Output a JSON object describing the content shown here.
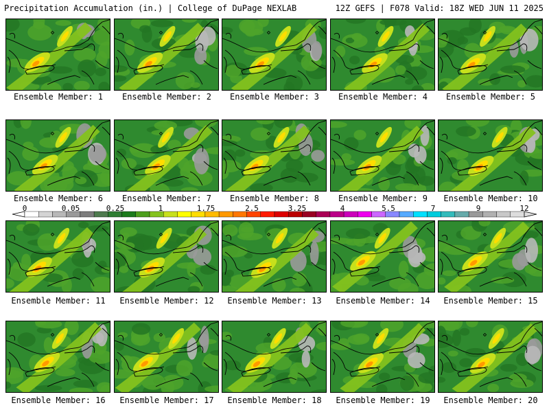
{
  "header": {
    "left": "Precipitation Accumulation (in.) | College of DuPage NEXLAB",
    "right": "12Z GEFS | F078 Valid: 18Z WED JUN 11 2025"
  },
  "panels": [
    {
      "caption": "Ensemble Member: 1"
    },
    {
      "caption": "Ensemble Member: 2"
    },
    {
      "caption": "Ensemble Member: 3"
    },
    {
      "caption": "Ensemble Member: 4"
    },
    {
      "caption": "Ensemble Member: 5"
    },
    {
      "caption": "Ensemble Member: 6"
    },
    {
      "caption": "Ensemble Member: 7"
    },
    {
      "caption": "Ensemble Member: 8"
    },
    {
      "caption": "Ensemble Member: 9"
    },
    {
      "caption": "Ensemble Member: 10"
    },
    {
      "caption": "Ensemble Member: 11"
    },
    {
      "caption": "Ensemble Member: 12"
    },
    {
      "caption": "Ensemble Member: 13"
    },
    {
      "caption": "Ensemble Member: 14"
    },
    {
      "caption": "Ensemble Member: 15"
    },
    {
      "caption": "Ensemble Member: 16"
    },
    {
      "caption": "Ensemble Member: 17"
    },
    {
      "caption": "Ensemble Member: 18"
    },
    {
      "caption": "Ensemble Member: 19"
    },
    {
      "caption": "Ensemble Member: 20"
    }
  ],
  "legend": {
    "ticks": [
      "0",
      "0.05",
      "0.25",
      "1",
      "1.75",
      "2.5",
      "3.25",
      "4",
      "5.5",
      "7",
      "9",
      "12"
    ],
    "colors": [
      "#ffffff",
      "#d4d4d4",
      "#b8b8b8",
      "#9a9a9a",
      "#7c7c7c",
      "#4e7a4e",
      "#2e7d32",
      "#1b7a1b",
      "#4d9e1d",
      "#84c21d",
      "#c7e01c",
      "#ffff00",
      "#ffdd00",
      "#ffbb00",
      "#ff9900",
      "#ff7700",
      "#ff4400",
      "#ff1a00",
      "#dd0000",
      "#bb0000",
      "#990022",
      "#aa0055",
      "#bb0088",
      "#cc00bb",
      "#ee00ee",
      "#cc66ff",
      "#8888ff",
      "#55aaff",
      "#00e0ff",
      "#00ccdd",
      "#33bbbb",
      "#66aaaa",
      "#999999",
      "#b0b0b0",
      "#c8c8c8",
      "#dddddd"
    ]
  }
}
